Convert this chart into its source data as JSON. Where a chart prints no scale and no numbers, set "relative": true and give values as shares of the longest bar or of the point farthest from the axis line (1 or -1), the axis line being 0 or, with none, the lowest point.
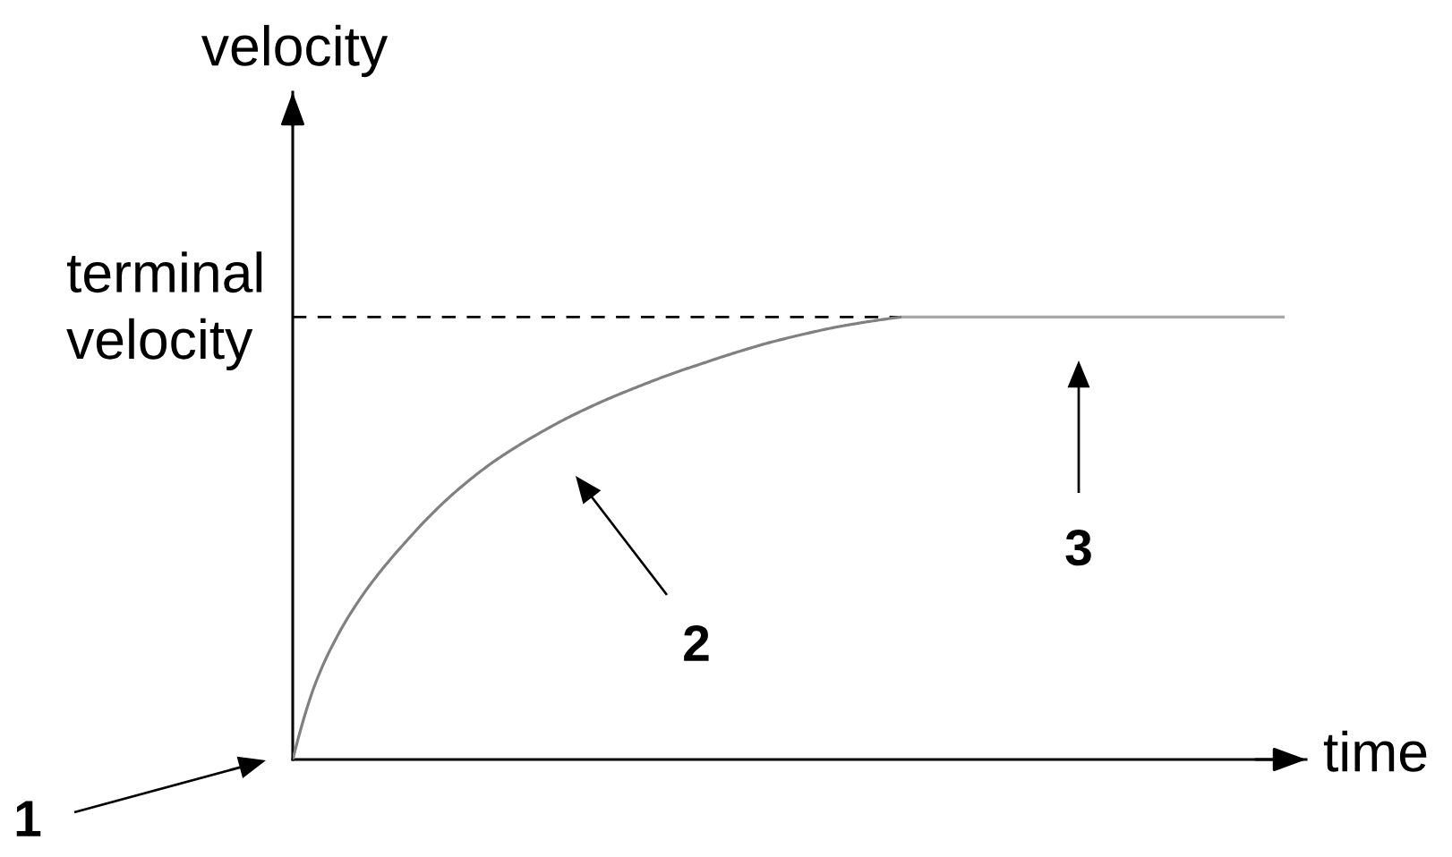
{
  "chart_data": {
    "type": "line",
    "xlabel": "time",
    "ylabel": "velocity",
    "relative": true,
    "tick_labels": false,
    "categories": [
      null,
      null,
      null,
      null,
      null,
      null,
      null,
      null,
      null,
      null,
      null,
      null,
      null,
      null,
      null,
      null,
      null,
      null,
      null,
      null,
      null,
      null,
      null,
      null,
      null,
      null,
      null,
      null,
      null,
      null,
      null,
      null,
      null,
      null,
      null,
      null,
      null,
      null,
      null,
      null,
      null,
      null,
      null,
      null,
      null
    ],
    "series": [
      {
        "color": "#808080",
        "values": [
          0,
          0.171,
          0.281,
          0.364,
          0.432,
          0.491,
          0.546,
          0.595,
          0.638,
          0.676,
          0.709,
          0.739,
          0.767,
          0.792,
          0.815,
          0.836,
          0.856,
          0.875,
          0.892,
          0.909,
          0.925,
          0.94,
          0.953,
          0.965,
          0.976,
          0.985,
          0.993,
          1,
          null,
          null,
          null,
          null,
          null,
          null,
          null,
          null,
          null,
          null,
          null,
          null,
          null,
          null,
          null,
          null,
          null
        ]
      },
      {
        "color": "#a8a8a8",
        "values": [
          null,
          null,
          null,
          null,
          null,
          null,
          null,
          null,
          null,
          null,
          null,
          null,
          null,
          null,
          null,
          null,
          null,
          null,
          null,
          null,
          null,
          null,
          null,
          null,
          null,
          null,
          null,
          1,
          1,
          1,
          1,
          1,
          1,
          1,
          1,
          1,
          1,
          1,
          1,
          1,
          1,
          1,
          1,
          1,
          1
        ]
      }
    ],
    "ref_lines": [
      {
        "axis": "y",
        "value": 1,
        "label": "terminal\nvelocity",
        "color": "#000000",
        "line_style": "dashed"
      }
    ],
    "annotations": [
      "1",
      "2",
      "3"
    ]
  }
}
